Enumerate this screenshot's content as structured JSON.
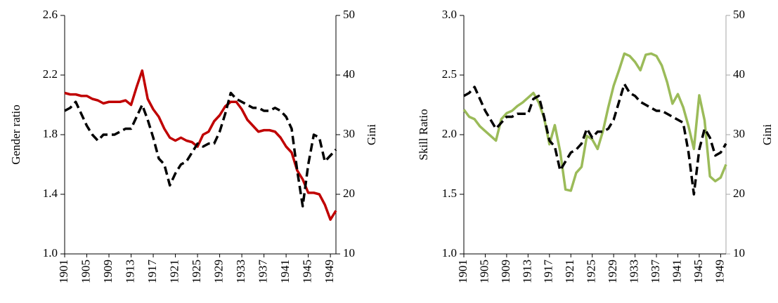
{
  "chart_data": [
    {
      "type": "line",
      "ylabel": "Gender ratio",
      "y2label": "Gini",
      "x": [
        1901,
        1902,
        1903,
        1904,
        1905,
        1906,
        1907,
        1908,
        1909,
        1910,
        1911,
        1912,
        1913,
        1914,
        1915,
        1916,
        1917,
        1918,
        1919,
        1920,
        1921,
        1922,
        1923,
        1924,
        1925,
        1926,
        1927,
        1928,
        1929,
        1930,
        1931,
        1932,
        1933,
        1934,
        1935,
        1936,
        1937,
        1938,
        1939,
        1940,
        1941,
        1942,
        1943,
        1944,
        1945,
        1946,
        1947,
        1948,
        1949,
        1950
      ],
      "xlim": [
        1901,
        1950
      ],
      "xticks": [
        1901,
        1905,
        1909,
        1913,
        1917,
        1921,
        1925,
        1929,
        1933,
        1937,
        1941,
        1945,
        1949
      ],
      "ylim": [
        1,
        2.6
      ],
      "yticks": [
        {
          "value": 1,
          "label": "1.0"
        },
        1.4,
        1.8,
        2.2,
        2.6
      ],
      "y2lim": [
        10,
        50
      ],
      "y2ticks": [
        10,
        20,
        30,
        40,
        50
      ],
      "axis_color": "#000000",
      "y2_axis_color": "#000000",
      "series": [
        {
          "color": "#c00000",
          "style": "solid",
          "values": [
            2.08,
            2.07,
            2.07,
            2.06,
            2.06,
            2.04,
            2.03,
            2.01,
            2.02,
            2.02,
            2.02,
            2.03,
            2.0,
            2.12,
            2.23,
            2.04,
            1.97,
            1.92,
            1.84,
            1.78,
            1.76,
            1.78,
            1.76,
            1.75,
            1.72,
            1.8,
            1.82,
            1.89,
            1.93,
            1.99,
            2.02,
            2.02,
            1.97,
            1.9,
            1.86,
            1.82,
            1.83,
            1.83,
            1.82,
            1.78,
            1.72,
            1.68,
            1.56,
            1.5,
            1.41,
            1.41,
            1.4,
            1.33,
            1.23,
            1.29
          ]
        },
        {
          "color": "#000000",
          "style": "dashed",
          "axis": "y2",
          "values": [
            34,
            34.5,
            35.5,
            33.5,
            31.5,
            30,
            29,
            30,
            30,
            30,
            30.5,
            31,
            31,
            33,
            35,
            32.5,
            29.5,
            26,
            25,
            21.5,
            23.5,
            25,
            25.5,
            27,
            28.5,
            28,
            28.5,
            28.5,
            30.5,
            33.5,
            37,
            36,
            35.5,
            35,
            34.5,
            34.5,
            34,
            34,
            34.5,
            34,
            33,
            31,
            24,
            18,
            25,
            30,
            29.5,
            25.5,
            26.5,
            27.5
          ]
        }
      ]
    },
    {
      "type": "line",
      "ylabel": "Skill Ratio",
      "y2label": "Gini",
      "x": [
        1901,
        1902,
        1903,
        1904,
        1905,
        1906,
        1907,
        1908,
        1909,
        1910,
        1911,
        1912,
        1913,
        1914,
        1915,
        1916,
        1917,
        1918,
        1919,
        1920,
        1921,
        1922,
        1923,
        1924,
        1925,
        1926,
        1927,
        1928,
        1929,
        1930,
        1931,
        1932,
        1933,
        1934,
        1935,
        1936,
        1937,
        1938,
        1939,
        1940,
        1941,
        1942,
        1943,
        1944,
        1945,
        1946,
        1947,
        1948,
        1949,
        1950
      ],
      "xlim": [
        1901,
        1950
      ],
      "xticks": [
        1901,
        1905,
        1909,
        1913,
        1917,
        1921,
        1925,
        1929,
        1933,
        1937,
        1941,
        1945,
        1949
      ],
      "ylim": [
        1,
        3
      ],
      "yticks": [
        {
          "value": 1,
          "label": "1.0"
        },
        1.5,
        {
          "value": 2,
          "label": "2.0"
        },
        2.5,
        {
          "value": 3,
          "label": "3.0"
        }
      ],
      "y2lim": [
        10,
        50
      ],
      "y2ticks": [
        10,
        20,
        30,
        40,
        50
      ],
      "axis_color": "#000000",
      "y2_axis_color": "#a6a6a6",
      "series": [
        {
          "color": "#9bbb59",
          "style": "solid",
          "values": [
            2.21,
            2.15,
            2.13,
            2.07,
            2.03,
            1.99,
            1.95,
            2.13,
            2.18,
            2.2,
            2.24,
            2.27,
            2.31,
            2.35,
            2.27,
            2.14,
            1.92,
            2.08,
            1.86,
            1.54,
            1.53,
            1.68,
            1.73,
            1.99,
            1.96,
            1.88,
            2.03,
            2.23,
            2.41,
            2.54,
            2.68,
            2.66,
            2.61,
            2.54,
            2.67,
            2.68,
            2.66,
            2.58,
            2.44,
            2.26,
            2.34,
            2.23,
            2.07,
            1.88,
            2.33,
            2.12,
            1.65,
            1.61,
            1.64,
            1.75
          ]
        },
        {
          "color": "#000000",
          "style": "dashed",
          "axis": "y2",
          "values": [
            36.5,
            37,
            38,
            36,
            34,
            32.5,
            31,
            32,
            33,
            33,
            33.5,
            33.5,
            33.5,
            36,
            36.5,
            33,
            29,
            28,
            24,
            25.5,
            27,
            27.5,
            28.5,
            31,
            29.5,
            30.5,
            30.5,
            31,
            32.5,
            35.5,
            38.5,
            37,
            36.5,
            35.5,
            35,
            34.5,
            34,
            34,
            33.5,
            33,
            32.5,
            32,
            27,
            20,
            27.5,
            31,
            29.5,
            26.5,
            27,
            28.5
          ]
        }
      ]
    }
  ]
}
